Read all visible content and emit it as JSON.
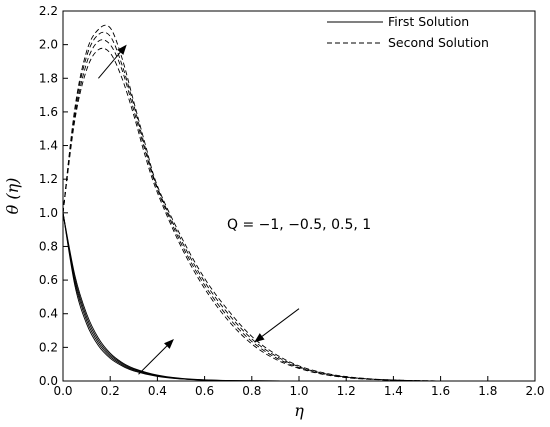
{
  "chart_data": {
    "type": "line",
    "xlabel": "η",
    "ylabel": "θ (η)",
    "xlim": [
      0,
      2.0
    ],
    "ylim": [
      0,
      2.2
    ],
    "x_ticks": [
      "0.0",
      "0.2",
      "0.4",
      "0.6",
      "0.8",
      "1.0",
      "1.2",
      "1.4",
      "1.6",
      "1.8",
      "2.0"
    ],
    "y_ticks": [
      "0.0",
      "0.2",
      "0.4",
      "0.6",
      "0.8",
      "1.0",
      "1.2",
      "1.4",
      "1.6",
      "1.8",
      "2.0",
      "2.2"
    ],
    "grid": false,
    "legend_position": "top-right",
    "legend": [
      {
        "label": "First Solution",
        "style": "solid"
      },
      {
        "label": "Second Solution",
        "style": "dashed"
      }
    ],
    "annotation": "Q = −1, −0.5, 0.5, 1",
    "parameter_values": [
      -1,
      -0.5,
      0.5,
      1
    ],
    "first_solution": {
      "style": "solid",
      "x": [
        0,
        0.05,
        0.1,
        0.15,
        0.2,
        0.25,
        0.3,
        0.4,
        0.5,
        0.6,
        0.7,
        0.8,
        1.0,
        1.2,
        1.4,
        1.6,
        1.8,
        2.0
      ],
      "series": [
        {
          "Q": -1,
          "y": [
            1.0,
            0.57,
            0.34,
            0.21,
            0.135,
            0.09,
            0.06,
            0.027,
            0.012,
            0.005,
            0.002,
            0.001,
            0,
            0,
            0,
            0,
            0,
            0
          ]
        },
        {
          "Q": -0.5,
          "y": [
            1.0,
            0.59,
            0.36,
            0.225,
            0.145,
            0.097,
            0.065,
            0.03,
            0.013,
            0.006,
            0.002,
            0.001,
            0,
            0,
            0,
            0,
            0,
            0
          ]
        },
        {
          "Q": 0.5,
          "y": [
            1.0,
            0.61,
            0.38,
            0.24,
            0.155,
            0.104,
            0.07,
            0.032,
            0.014,
            0.006,
            0.003,
            0.001,
            0,
            0,
            0,
            0,
            0,
            0
          ]
        },
        {
          "Q": 1,
          "y": [
            1.0,
            0.63,
            0.4,
            0.255,
            0.165,
            0.11,
            0.075,
            0.035,
            0.016,
            0.007,
            0.003,
            0.001,
            0,
            0,
            0,
            0,
            0,
            0
          ]
        }
      ]
    },
    "second_solution": {
      "style": "dashed",
      "x": [
        0,
        0.05,
        0.1,
        0.15,
        0.2,
        0.25,
        0.3,
        0.35,
        0.4,
        0.5,
        0.6,
        0.7,
        0.8,
        0.9,
        1.0,
        1.1,
        1.2,
        1.3,
        1.4,
        1.5,
        1.6
      ],
      "series": [
        {
          "Q": -1,
          "y": [
            1.0,
            1.55,
            1.85,
            1.97,
            1.95,
            1.8,
            1.58,
            1.33,
            1.12,
            0.8,
            0.55,
            0.36,
            0.22,
            0.13,
            0.075,
            0.04,
            0.02,
            0.01,
            0.005,
            0.002,
            0
          ]
        },
        {
          "Q": -0.5,
          "y": [
            1.0,
            1.57,
            1.89,
            2.02,
            2.0,
            1.85,
            1.61,
            1.36,
            1.14,
            0.82,
            0.57,
            0.38,
            0.235,
            0.14,
            0.08,
            0.043,
            0.022,
            0.011,
            0.005,
            0.002,
            0
          ]
        },
        {
          "Q": 0.5,
          "y": [
            1.0,
            1.6,
            1.93,
            2.06,
            2.05,
            1.88,
            1.64,
            1.38,
            1.15,
            0.84,
            0.59,
            0.4,
            0.25,
            0.15,
            0.085,
            0.046,
            0.024,
            0.012,
            0.006,
            0.002,
            0
          ]
        },
        {
          "Q": 1,
          "y": [
            1.0,
            1.62,
            1.96,
            2.09,
            2.1,
            1.92,
            1.66,
            1.4,
            1.16,
            0.86,
            0.61,
            0.42,
            0.265,
            0.16,
            0.09,
            0.05,
            0.026,
            0.013,
            0.006,
            0.002,
            0
          ]
        }
      ]
    },
    "arrows": [
      {
        "from": [
          0.15,
          1.8
        ],
        "to": [
          0.27,
          2.0
        ]
      },
      {
        "from": [
          0.32,
          0.04
        ],
        "to": [
          0.47,
          0.25
        ]
      },
      {
        "from": [
          1.0,
          0.43
        ],
        "to": [
          0.81,
          0.23
        ]
      }
    ]
  }
}
